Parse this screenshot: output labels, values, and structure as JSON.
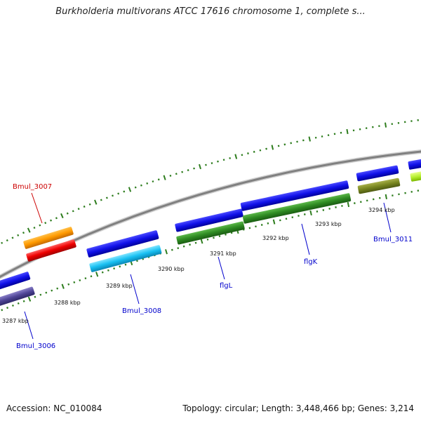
{
  "title": "Burkholderia multivorans ATCC 17616 chromosome 1, complete s...",
  "colors": {
    "backbone": "#8a8a8a",
    "tick": "#2e7d1e",
    "label_default": "#0000cc",
    "label_highlight": "#cc0000",
    "scale_label": "#111111"
  },
  "scale_labels": [
    "3287 kbp",
    "3288 kbp",
    "3289 kbp",
    "3290 kbp",
    "3291 kbp",
    "3292 kbp",
    "3293 kbp",
    "3294 kbp"
  ],
  "genes": [
    {
      "name": "Bmul_3006",
      "color": "#0000cc"
    },
    {
      "name": "Bmul_3007",
      "color": "#cc0000"
    },
    {
      "name": "Bmul_3008",
      "color": "#0000cc"
    },
    {
      "name": "flgL",
      "color": "#0000cc"
    },
    {
      "name": "flgK",
      "color": "#0000cc"
    },
    {
      "name": "Bmul_3011",
      "color": "#0000cc"
    }
  ],
  "footer": {
    "accession": "Accession: NC_010084",
    "topology": "Topology: circular; Length: 3,448,466 bp; Genes: 3,214"
  }
}
